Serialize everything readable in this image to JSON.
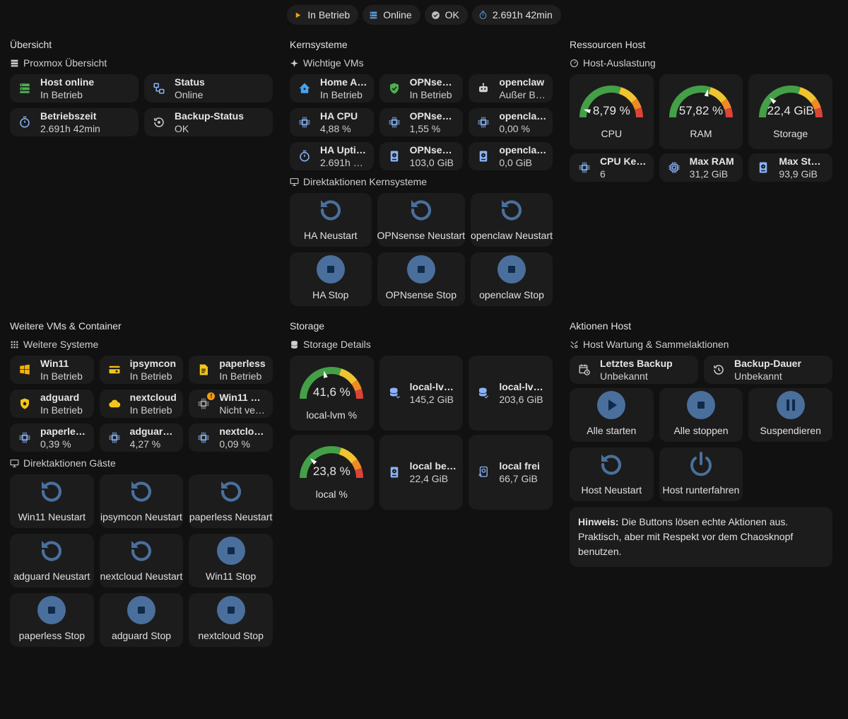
{
  "badges": [
    {
      "icon": "play-icon",
      "label": "In Betrieb",
      "color": "#f0a30a"
    },
    {
      "icon": "server-icon",
      "label": "Online",
      "color": "#5b9bd5"
    },
    {
      "icon": "check-circle-icon",
      "label": "OK",
      "color": "#bdbdbd"
    },
    {
      "icon": "timer-icon",
      "label": "2.691h 42min",
      "color": "#5b9bd5"
    }
  ],
  "uebersicht": {
    "title": "Übersicht",
    "subtitle": "Proxmox Übersicht",
    "tiles": [
      {
        "icon": "server-icon",
        "name": "Host online",
        "state": "In Betrieb"
      },
      {
        "icon": "network-icon",
        "name": "Status",
        "state": "Online"
      },
      {
        "icon": "timer-icon",
        "name": "Betriebszeit",
        "state": "2.691h 42min"
      },
      {
        "icon": "backup-icon",
        "name": "Backup-Status",
        "state": "OK"
      }
    ]
  },
  "kern": {
    "title": "Kernsysteme",
    "subtitle": "Wichtige VMs",
    "tiles": [
      {
        "icon": "home-assistant-icon",
        "name": "Home As…",
        "state": "In Betrieb"
      },
      {
        "icon": "shield-check-icon",
        "name": "OPNsense",
        "state": "In Betrieb"
      },
      {
        "icon": "robot-icon",
        "name": "openclaw",
        "state": "Außer Bet…"
      },
      {
        "icon": "cpu-icon",
        "name": "HA CPU",
        "state": "4,88 %"
      },
      {
        "icon": "cpu-icon",
        "name": "OPNsens…",
        "state": "1,55 %"
      },
      {
        "icon": "cpu-icon",
        "name": "openclaw…",
        "state": "0,00 %"
      },
      {
        "icon": "timer-icon",
        "name": "HA Uptime",
        "state": "2.691h 4…"
      },
      {
        "icon": "harddisk-icon",
        "name": "OPNsens…",
        "state": "103,0 GiB"
      },
      {
        "icon": "harddisk-icon",
        "name": "openclaw…",
        "state": "0,0 GiB"
      }
    ],
    "actions_title": "Direktaktionen Kernsysteme",
    "actions": [
      {
        "icon": "restart-icon",
        "label": "HA Neustart"
      },
      {
        "icon": "restart-icon",
        "label": "OPNsense Neustart"
      },
      {
        "icon": "restart-icon",
        "label": "openclaw Neustart"
      },
      {
        "icon": "stop-icon",
        "label": "HA Stop"
      },
      {
        "icon": "stop-icon",
        "label": "OPNsense Stop"
      },
      {
        "icon": "stop-icon",
        "label": "openclaw Stop"
      }
    ]
  },
  "ressourcen": {
    "title": "Ressourcen Host",
    "subtitle": "Host-Auslastung",
    "gauges": [
      {
        "value_text": "8,79 %",
        "label": "CPU",
        "fraction": 0.0879
      },
      {
        "value_text": "57,82 %",
        "label": "RAM",
        "fraction": 0.5782
      },
      {
        "value_text": "22,4 GiB",
        "label": "Storage",
        "fraction": 0.24
      }
    ],
    "tiles": [
      {
        "icon": "cpu-icon",
        "name": "CPU Kerne",
        "state": "6"
      },
      {
        "icon": "memory-icon",
        "name": "Max RAM",
        "state": "31,2 GiB"
      },
      {
        "icon": "harddisk-icon",
        "name": "Max Stor…",
        "state": "93,9 GiB"
      }
    ]
  },
  "weitere": {
    "title": "Weitere VMs & Container",
    "subtitle": "Weitere Systeme",
    "tiles": [
      {
        "icon": "windows-icon",
        "name": "Win11",
        "state": "In Betrieb"
      },
      {
        "icon": "card-icon",
        "name": "ipsymcon",
        "state": "In Betrieb"
      },
      {
        "icon": "document-icon",
        "name": "paperless",
        "state": "In Betrieb"
      },
      {
        "icon": "shield-home-icon",
        "name": "adguard",
        "state": "In Betrieb"
      },
      {
        "icon": "cloud-icon",
        "name": "nextcloud",
        "state": "In Betrieb"
      },
      {
        "icon": "cpu-icon",
        "name": "Win11 CPU",
        "state": "Nicht verf…",
        "warning": "!"
      },
      {
        "icon": "cpu-icon",
        "name": "paperless…",
        "state": "0,39 %"
      },
      {
        "icon": "cpu-icon",
        "name": "adguard …",
        "state": "4,27 %"
      },
      {
        "icon": "cpu-icon",
        "name": "nextcloud…",
        "state": "0,09 %"
      }
    ],
    "actions_title": "Direktaktionen Gäste",
    "actions": [
      {
        "icon": "restart-icon",
        "label": "Win11 Neustart"
      },
      {
        "icon": "restart-icon",
        "label": "ipsymcon Neustart"
      },
      {
        "icon": "restart-icon",
        "label": "paperless Neustart"
      },
      {
        "icon": "restart-icon",
        "label": "adguard Neustart"
      },
      {
        "icon": "restart-icon",
        "label": "nextcloud Neustart"
      },
      {
        "icon": "stop-icon",
        "label": "Win11 Stop"
      },
      {
        "icon": "stop-icon",
        "label": "paperless Stop"
      },
      {
        "icon": "stop-icon",
        "label": "adguard Stop"
      },
      {
        "icon": "stop-icon",
        "label": "nextcloud Stop"
      }
    ]
  },
  "storage": {
    "title": "Storage",
    "subtitle": "Storage Details",
    "row1": {
      "gauge": {
        "value_text": "41,6 %",
        "label": "local-lvm %",
        "fraction": 0.416
      },
      "tiles": [
        {
          "icon": "database-icon",
          "name": "local-lvm …",
          "state": "145,2 GiB"
        },
        {
          "icon": "database-check-icon",
          "name": "local-lvm …",
          "state": "203,6 GiB"
        }
      ]
    },
    "row2": {
      "gauge": {
        "value_text": "23,8 %",
        "label": "local %",
        "fraction": 0.238
      },
      "tiles": [
        {
          "icon": "harddisk-icon",
          "name": "local belegt",
          "state": "22,4 GiB"
        },
        {
          "icon": "harddisk-plus-icon",
          "name": "local frei",
          "state": "66,7 GiB"
        }
      ]
    }
  },
  "aktionen": {
    "title": "Aktionen Host",
    "subtitle": "Host Wartung & Sammelaktionen",
    "tiles": [
      {
        "icon": "calendar-clock-icon",
        "name": "Letztes Backup",
        "state": "Unbekannt"
      },
      {
        "icon": "history-icon",
        "name": "Backup-Dauer",
        "state": "Unbekannt"
      }
    ],
    "actions": [
      {
        "icon": "play-icon",
        "label": "Alle starten"
      },
      {
        "icon": "stop-icon",
        "label": "Alle stoppen"
      },
      {
        "icon": "pause-icon",
        "label": "Suspendieren"
      },
      {
        "icon": "restart-icon",
        "label": "Host Neustart"
      },
      {
        "icon": "power-icon",
        "label": "Host runterfahren"
      }
    ],
    "note_bold": "Hinweis:",
    "note_text": " Die Buttons lösen echte Aktionen aus. Praktisch, aber mit Respekt vor dem Chaosknopf benutzen."
  },
  "colors": {
    "accent": "#4a6f9c",
    "accent_light": "#8ab4f8",
    "green": "#43a047",
    "yellow": "#f0c330",
    "orange": "#f08a24",
    "red": "#db4437"
  }
}
